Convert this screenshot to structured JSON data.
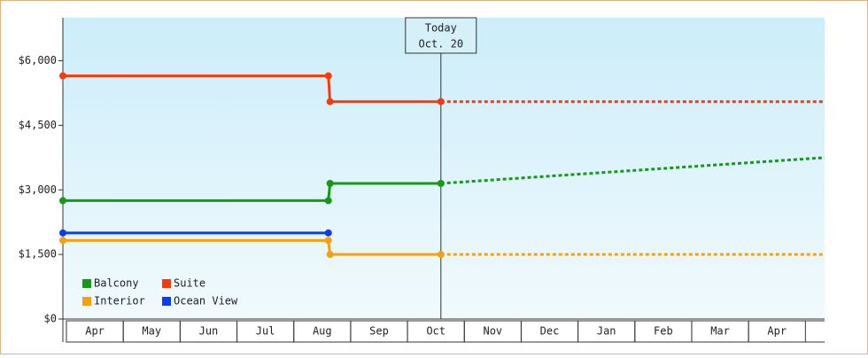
{
  "chart_data": {
    "type": "line",
    "series": [
      {
        "name": "Balcony",
        "color": "#159a15",
        "x": [
          0,
          4.67,
          4.7,
          6.65
        ],
        "values": [
          2750,
          2750,
          3150,
          3150
        ],
        "forecast_x": [
          6.65,
          13.4
        ],
        "forecast_values": [
          3150,
          3750
        ]
      },
      {
        "name": "Suite",
        "color": "#f53b0c",
        "x": [
          0,
          4.67,
          4.7,
          6.65
        ],
        "values": [
          5650,
          5650,
          5050,
          5050
        ],
        "forecast_x": [
          6.65,
          13.4
        ],
        "forecast_values": [
          5050,
          5050
        ]
      },
      {
        "name": "Interior",
        "color": "#f5a10f",
        "x": [
          0,
          4.67,
          4.7,
          6.65
        ],
        "values": [
          1825,
          1825,
          1500,
          1500
        ],
        "forecast_x": [
          6.65,
          13.4
        ],
        "forecast_values": [
          1500,
          1500
        ]
      },
      {
        "name": "Ocean View",
        "color": "#0a3cf5",
        "x": [
          0,
          4.67
        ],
        "values": [
          2000,
          2000
        ]
      }
    ],
    "xlim": [
      0,
      13.4
    ],
    "xticks": [
      {
        "value": 0.5,
        "label": "Apr"
      },
      {
        "value": 1.5,
        "label": "May"
      },
      {
        "value": 2.5,
        "label": "Jun"
      },
      {
        "value": 3.5,
        "label": "Jul"
      },
      {
        "value": 4.5,
        "label": "Aug"
      },
      {
        "value": 5.5,
        "label": "Sep"
      },
      {
        "value": 6.5,
        "label": "Oct"
      },
      {
        "value": 7.5,
        "label": "Nov"
      },
      {
        "value": 8.5,
        "label": "Dec"
      },
      {
        "value": 9.5,
        "label": "Jan"
      },
      {
        "value": 10.5,
        "label": "Feb"
      },
      {
        "value": 11.5,
        "label": "Mar"
      },
      {
        "value": 12.5,
        "label": "Apr"
      }
    ],
    "ylim": [
      0,
      7000
    ],
    "yticks": [
      {
        "value": 0,
        "label": "$0"
      },
      {
        "value": 1500,
        "label": "$1,500"
      },
      {
        "value": 3000,
        "label": "$3,000"
      },
      {
        "value": 4500,
        "label": "$4,500"
      },
      {
        "value": 6000,
        "label": "$6,000"
      }
    ],
    "annotation": {
      "x": 6.65,
      "title": "Today",
      "text": "Oct. 20"
    },
    "legend": "lower left"
  }
}
